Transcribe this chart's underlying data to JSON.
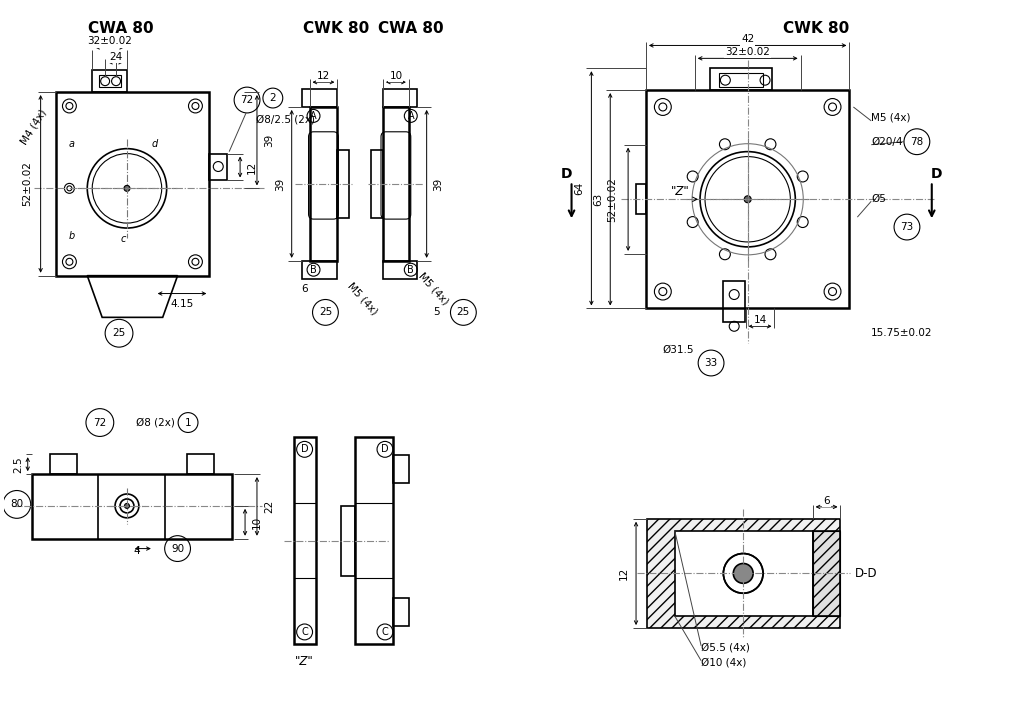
{
  "bg_color": "#ffffff",
  "line_color": "#000000",
  "labels": {
    "cwa80_left": "CWA 80",
    "cwk80_mid": "CWK 80",
    "cwa80_mid": "CWA 80",
    "cwk80_right": "CWK 80"
  },
  "dims": {
    "32pm002": "32±0.02",
    "24": "24",
    "m4_4x": "M4 (4x)",
    "o8_25_2x": "Ø8/2.5 (2x)",
    "52pm002": "52±0.02",
    "12": "12",
    "39": "39",
    "25": "25",
    "4p15": "4.15",
    "6": "6",
    "ms5_4x": "M5 (4x)",
    "10": "10",
    "5": "5",
    "42": "42",
    "o20_4": "Ø20/4",
    "78": "78",
    "64": "64",
    "63": "63",
    "z_mark": "\"Z\"",
    "o5": "Ø5",
    "73": "73",
    "14": "14",
    "o31p5": "Ø31.5",
    "33": "33",
    "15p75pm002": "15.75±0.02",
    "D": "D",
    "80": "80",
    "72": "72",
    "o8_2x": "Ø8 (2x)",
    "1": "1",
    "2p5": "2.5",
    "22": "22",
    "4": "4",
    "90": "90",
    "z_bot": "\"Z\"",
    "6_dd": "6",
    "12_dd": "12",
    "o5p5_4x": "Ø5.5 (4x)",
    "o10_4x": "Ø10 (4x)",
    "dd": "D-D",
    "2": "2"
  }
}
